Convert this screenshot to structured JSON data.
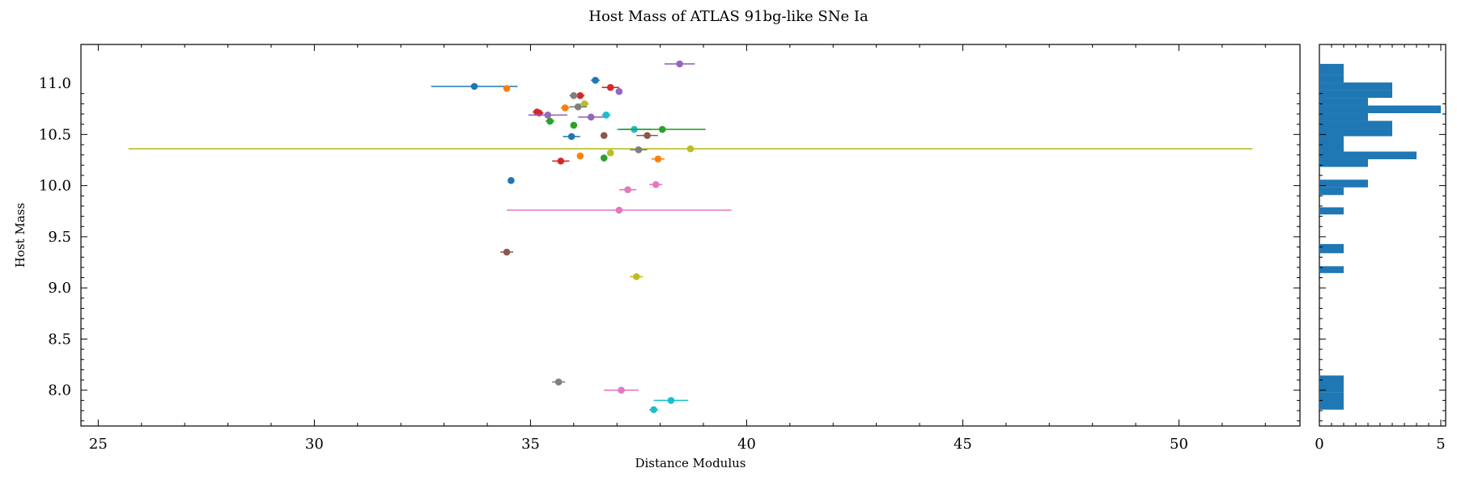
{
  "chart_data": [
    {
      "type": "scatter",
      "title": "Host Mass of ATLAS 91bg-like SNe Ia",
      "xlabel": "Distance Modulus",
      "ylabel": "Host Mass",
      "xlim": [
        24.6,
        52.8
      ],
      "ylim": [
        7.65,
        11.38
      ],
      "xticks": [
        "25",
        "30",
        "35",
        "40",
        "45",
        "50"
      ],
      "yticks": [
        "8.0",
        "8.5",
        "9.0",
        "9.5",
        "10.0",
        "10.5",
        "11.0"
      ],
      "grid": false,
      "colors": [
        "#1f77b4",
        "#ff7f0e",
        "#2ca02c",
        "#d62728",
        "#9467bd",
        "#8c564b",
        "#e377c2",
        "#7f7f7f",
        "#bcbd22",
        "#17becf"
      ],
      "points": [
        {
          "x": 33.7,
          "y": 10.97,
          "xerr": 1.0,
          "color": "#1f77b4"
        },
        {
          "x": 34.45,
          "y": 10.95,
          "xerr": 0.0,
          "color": "#ff7f0e"
        },
        {
          "x": 36.5,
          "y": 11.03,
          "xerr": 0.1,
          "color": "#1f77b4"
        },
        {
          "x": 38.45,
          "y": 11.19,
          "xerr": 0.35,
          "color": "#9467bd"
        },
        {
          "x": 36.85,
          "y": 10.96,
          "xerr": 0.2,
          "color": "#d62728"
        },
        {
          "x": 37.05,
          "y": 10.92,
          "xerr": 0.0,
          "color": "#9467bd"
        },
        {
          "x": 36.15,
          "y": 10.88,
          "xerr": 0.1,
          "color": "#d62728"
        },
        {
          "x": 36.0,
          "y": 10.88,
          "xerr": 0.1,
          "color": "#7f7f7f"
        },
        {
          "x": 36.25,
          "y": 10.8,
          "xerr": 0.1,
          "color": "#bcbd22"
        },
        {
          "x": 35.8,
          "y": 10.76,
          "xerr": 0.1,
          "color": "#ff7f0e"
        },
        {
          "x": 36.1,
          "y": 10.77,
          "xerr": 0.2,
          "color": "#7f7f7f"
        },
        {
          "x": 35.15,
          "y": 10.72,
          "xerr": 0.1,
          "color": "#d62728"
        },
        {
          "x": 35.2,
          "y": 10.71,
          "xerr": 0.1,
          "color": "#d62728"
        },
        {
          "x": 35.4,
          "y": 10.69,
          "xerr": 0.45,
          "color": "#9467bd"
        },
        {
          "x": 36.75,
          "y": 10.69,
          "xerr": 0.1,
          "color": "#17becf"
        },
        {
          "x": 36.4,
          "y": 10.67,
          "xerr": 0.3,
          "color": "#9467bd"
        },
        {
          "x": 35.45,
          "y": 10.63,
          "xerr": 0.1,
          "color": "#2ca02c"
        },
        {
          "x": 36.0,
          "y": 10.59,
          "xerr": 0.0,
          "color": "#2ca02c"
        },
        {
          "x": 37.4,
          "y": 10.55,
          "xerr": 0.4,
          "color": "#17becf"
        },
        {
          "x": 38.05,
          "y": 10.55,
          "xerr": 1.0,
          "color": "#2ca02c"
        },
        {
          "x": 35.95,
          "y": 10.48,
          "xerr": 0.2,
          "color": "#1f77b4"
        },
        {
          "x": 36.7,
          "y": 10.49,
          "xerr": 0.05,
          "color": "#8c564b"
        },
        {
          "x": 37.7,
          "y": 10.49,
          "xerr": 0.25,
          "color": "#8c564b"
        },
        {
          "x": 38.7,
          "y": 10.36,
          "xerr": 13.0,
          "color": "#bcbd22"
        },
        {
          "x": 37.5,
          "y": 10.35,
          "xerr": 0.2,
          "color": "#7f7f7f"
        },
        {
          "x": 36.85,
          "y": 10.32,
          "xerr": 0.0,
          "color": "#bcbd22"
        },
        {
          "x": 36.15,
          "y": 10.29,
          "xerr": 0.0,
          "color": "#ff7f0e"
        },
        {
          "x": 36.7,
          "y": 10.27,
          "xerr": 0.0,
          "color": "#2ca02c"
        },
        {
          "x": 37.95,
          "y": 10.26,
          "xerr": 0.15,
          "color": "#ff7f0e"
        },
        {
          "x": 35.7,
          "y": 10.24,
          "xerr": 0.2,
          "color": "#d62728"
        },
        {
          "x": 34.55,
          "y": 10.05,
          "xerr": 0.0,
          "color": "#1f77b4"
        },
        {
          "x": 37.9,
          "y": 10.01,
          "xerr": 0.15,
          "color": "#e377c2"
        },
        {
          "x": 37.25,
          "y": 9.96,
          "xerr": 0.2,
          "color": "#e377c2"
        },
        {
          "x": 37.05,
          "y": 9.76,
          "xerr": 2.6,
          "color": "#e377c2"
        },
        {
          "x": 34.45,
          "y": 9.35,
          "xerr": 0.15,
          "color": "#8c564b"
        },
        {
          "x": 37.45,
          "y": 9.11,
          "xerr": 0.15,
          "color": "#bcbd22"
        },
        {
          "x": 35.65,
          "y": 8.08,
          "xerr": 0.15,
          "color": "#7f7f7f"
        },
        {
          "x": 37.1,
          "y": 8.0,
          "xerr": 0.4,
          "color": "#e377c2"
        },
        {
          "x": 38.25,
          "y": 7.9,
          "xerr": 0.4,
          "color": "#17becf"
        },
        {
          "x": 37.85,
          "y": 7.81,
          "xerr": 0.1,
          "color": "#17becf"
        }
      ]
    },
    {
      "type": "bar",
      "orientation": "horizontal",
      "xticks": [
        "0",
        "5"
      ],
      "xlim": [
        0,
        5.2
      ],
      "color": "#1f77b4",
      "bins": [
        {
          "y0": 7.81,
          "y1": 7.977,
          "count": 1
        },
        {
          "y0": 7.977,
          "y1": 8.144,
          "count": 1
        },
        {
          "y0": 9.145,
          "y1": 9.212,
          "count": 1
        },
        {
          "y0": 9.339,
          "y1": 9.429,
          "count": 1
        },
        {
          "y0": 9.718,
          "y1": 9.788,
          "count": 1
        },
        {
          "y0": 9.908,
          "y1": 9.983,
          "count": 1
        },
        {
          "y0": 9.983,
          "y1": 10.058,
          "count": 2
        },
        {
          "y0": 10.183,
          "y1": 10.258,
          "count": 2
        },
        {
          "y0": 10.258,
          "y1": 10.333,
          "count": 4
        },
        {
          "y0": 10.333,
          "y1": 10.408,
          "count": 1
        },
        {
          "y0": 10.408,
          "y1": 10.483,
          "count": 1
        },
        {
          "y0": 10.483,
          "y1": 10.558,
          "count": 3
        },
        {
          "y0": 10.558,
          "y1": 10.633,
          "count": 3
        },
        {
          "y0": 10.633,
          "y1": 10.708,
          "count": 2
        },
        {
          "y0": 10.708,
          "y1": 10.783,
          "count": 5
        },
        {
          "y0": 10.783,
          "y1": 10.858,
          "count": 2
        },
        {
          "y0": 10.858,
          "y1": 10.933,
          "count": 3
        },
        {
          "y0": 10.933,
          "y1": 11.008,
          "count": 3
        },
        {
          "y0": 11.008,
          "y1": 11.083,
          "count": 1
        },
        {
          "y0": 11.083,
          "y1": 11.19,
          "count": 1
        }
      ]
    }
  ]
}
